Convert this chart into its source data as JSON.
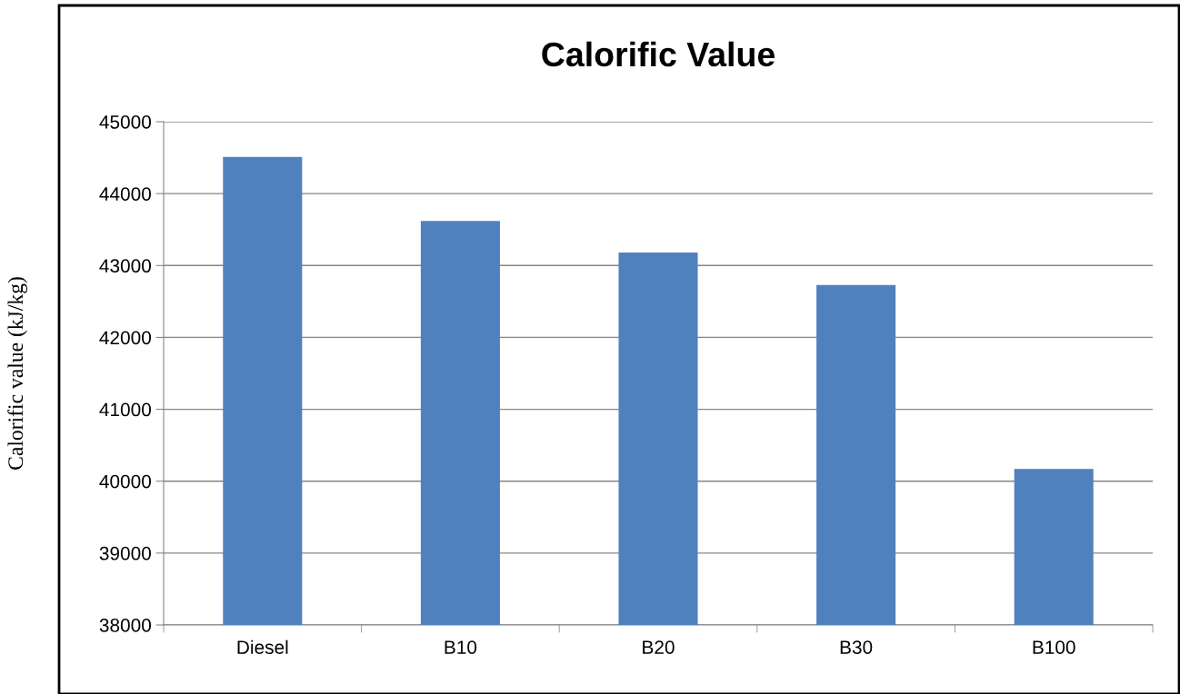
{
  "chart_data": {
    "type": "bar",
    "title": "Calorific Value",
    "ylabel": "Calorific value (kJ/kg)",
    "categories": [
      "Diesel",
      "B10",
      "B20",
      "B30",
      "B100"
    ],
    "values": [
      44510,
      43620,
      43180,
      42730,
      40170
    ],
    "color": "#4f81bd",
    "ylim": [
      38000,
      45000
    ],
    "yticks": [
      38000,
      39000,
      40000,
      41000,
      42000,
      43000,
      44000,
      45000
    ],
    "grid": "y",
    "legend": false
  }
}
